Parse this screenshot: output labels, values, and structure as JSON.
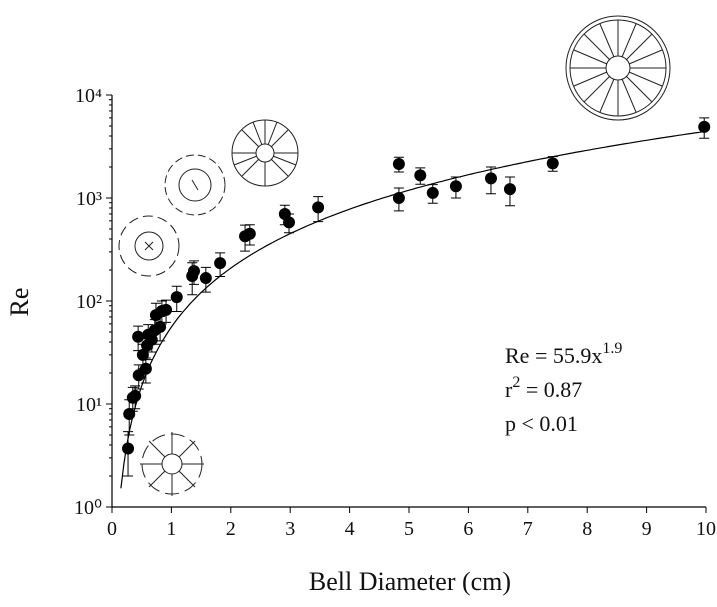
{
  "chart_data": {
    "type": "scatter",
    "x_label": "Bell Diameter (cm)",
    "y_label": "Re",
    "xlim": [
      0,
      10
    ],
    "xticks": [
      0,
      1,
      2,
      3,
      4,
      5,
      6,
      7,
      8,
      9,
      10
    ],
    "ylim": [
      1,
      10000
    ],
    "y_log": true,
    "yticks": [
      {
        "value": 1,
        "label": "10⁰"
      },
      {
        "value": 10,
        "label": "10¹"
      },
      {
        "value": 100,
        "label": "10²"
      },
      {
        "value": 1000,
        "label": "10³"
      },
      {
        "value": 10000,
        "label": "10⁴"
      }
    ],
    "series": [
      {
        "color": "#000000",
        "x": [
          0.27,
          0.29,
          0.35,
          0.39,
          0.45,
          0.44,
          0.52,
          0.57,
          0.59,
          0.61,
          0.67,
          0.72,
          0.74,
          0.81,
          0.84,
          0.91,
          1.09,
          1.35,
          1.38,
          1.58,
          1.82,
          2.24,
          2.32,
          2.91,
          2.98,
          3.47,
          4.83,
          4.83,
          5.19,
          5.4,
          5.79,
          6.38,
          6.7,
          7.42,
          9.97
        ],
        "values": [
          3.7,
          8,
          11.5,
          12,
          19,
          45,
          30,
          22,
          37,
          47,
          42,
          52,
          73,
          56,
          80,
          82,
          109,
          175,
          195,
          167,
          233,
          425,
          450,
          700,
          580,
          810,
          2140,
          1000,
          1660,
          1120,
          1300,
          1550,
          1220,
          2170,
          4900
        ],
        "errors": [
          1.7,
          3,
          3,
          3,
          5,
          12,
          8,
          6,
          10,
          12,
          10,
          14,
          22,
          15,
          20,
          20,
          30,
          60,
          50,
          45,
          60,
          120,
          100,
          150,
          120,
          220,
          350,
          250,
          300,
          230,
          300,
          450,
          380,
          350,
          1100
        ]
      }
    ],
    "fit": {
      "coefficient": 55.9,
      "exponent": 1.9
    },
    "annotations": [
      {
        "text": "Re = 55.9x",
        "sup": "1.9"
      },
      {
        "text": "r",
        "sup": "2",
        "rest": " = 0.87"
      },
      {
        "text": "p < 0.01"
      }
    ]
  }
}
